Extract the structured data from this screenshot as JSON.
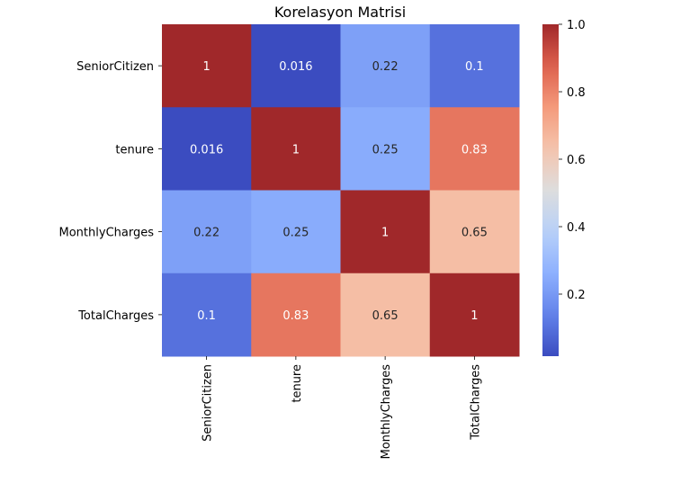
{
  "chart_data": {
    "type": "heatmap",
    "title": "Korelasyon Matrisi",
    "row_labels": [
      "SeniorCitizen",
      "tenure",
      "MonthlyCharges",
      "TotalCharges"
    ],
    "col_labels": [
      "SeniorCitizen",
      "tenure",
      "MonthlyCharges",
      "TotalCharges"
    ],
    "values": [
      [
        1,
        0.016,
        0.22,
        0.1
      ],
      [
        0.016,
        1,
        0.25,
        0.83
      ],
      [
        0.22,
        0.25,
        1,
        0.65
      ],
      [
        0.1,
        0.83,
        0.65,
        1
      ]
    ],
    "annotations": [
      [
        "1",
        "0.016",
        "0.22",
        "0.1"
      ],
      [
        "0.016",
        "1",
        "0.25",
        "0.83"
      ],
      [
        "0.22",
        "0.25",
        "1",
        "0.65"
      ],
      [
        "0.1",
        "0.83",
        "0.65",
        "1"
      ]
    ],
    "colormap": "coolwarm",
    "colorbar": {
      "range": [
        0.016,
        1.0
      ],
      "ticks": [
        0.2,
        0.4,
        0.6,
        0.8,
        1.0
      ],
      "tick_labels": [
        "0.2",
        "0.4",
        "0.6",
        "0.8",
        "1.0"
      ]
    }
  }
}
